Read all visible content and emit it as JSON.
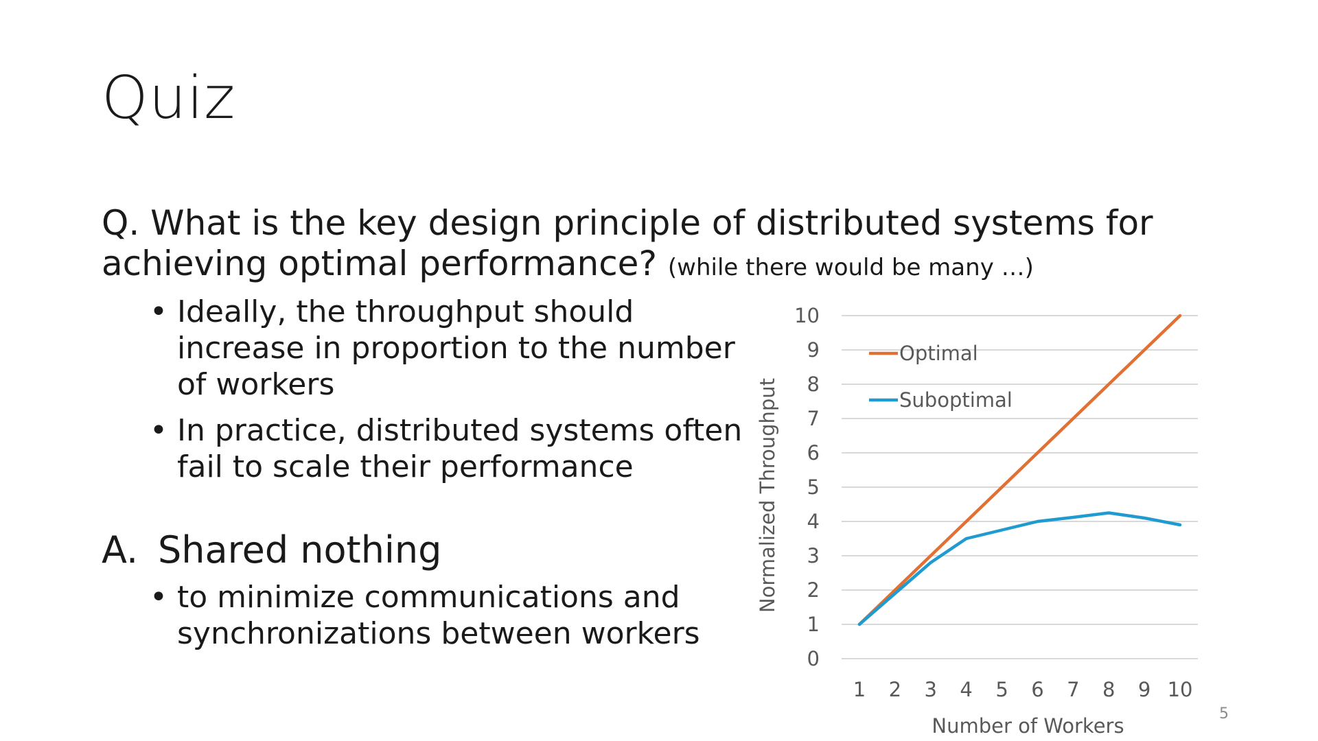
{
  "slide": {
    "title": "Quiz",
    "question": "Q. What is the key design principle of distributed systems for achieving optimal performance?",
    "question_aside": "(while there would be many …)",
    "question_bullets": [
      "Ideally, the throughput should increase in proportion to the number of workers",
      "In practice, distributed systems often fail to scale their performance"
    ],
    "answer_label": "A.",
    "answer": "Shared nothing",
    "answer_bullets": [
      "to minimize communications and synchronizations between workers"
    ],
    "bullet_glyph": "•",
    "page_number": "5"
  },
  "chart_data": {
    "type": "line",
    "x": [
      1,
      2,
      3,
      4,
      5,
      6,
      7,
      8,
      9,
      10
    ],
    "series": [
      {
        "name": "Optimal",
        "color": "#e07033",
        "values": [
          1,
          2,
          3,
          4,
          5,
          6,
          7,
          8,
          9,
          10
        ]
      },
      {
        "name": "Suboptimal",
        "color": "#1f9bd0",
        "values": [
          1,
          1.9,
          2.8,
          3.5,
          3.75,
          4.0,
          4.12,
          4.25,
          4.1,
          3.9
        ]
      }
    ],
    "xlabel": "Number of Workers",
    "ylabel": "Normalized Throughput",
    "ylim": [
      0,
      10
    ],
    "yticks": [
      0,
      1,
      2,
      3,
      4,
      5,
      6,
      7,
      8,
      9,
      10
    ],
    "grid": true,
    "legend_position": "top-left"
  }
}
